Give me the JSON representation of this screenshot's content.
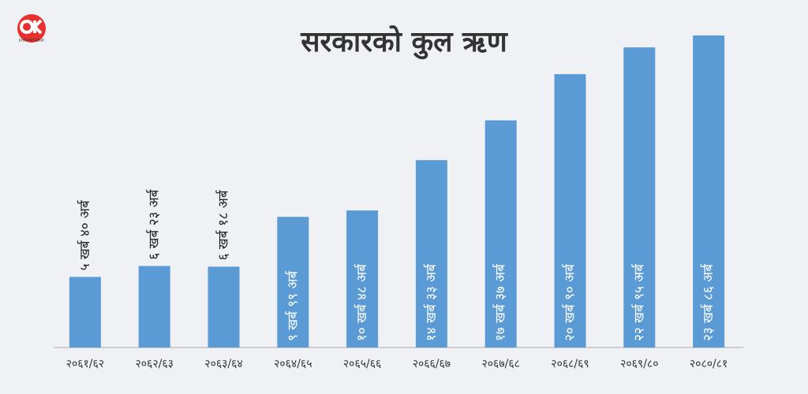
{
  "chart_data": {
    "type": "bar",
    "title": "सरकारको कुल ऋण",
    "logo_text": "onlinekhabar",
    "categories": [
      "२०६१/६२",
      "२०६२/६३",
      "२०६३/६४",
      "२०६४/६५",
      "२०६५/६६",
      "२०६६/६७",
      "२०६७/६८",
      "२०६८/६९",
      "२०६९/८०",
      "२०८०/८१"
    ],
    "values": [
      540,
      623,
      618,
      999,
      1048,
      1433,
      1737,
      2090,
      2295,
      2386
    ],
    "value_labels": [
      "५ खर्ब ४० अर्ब",
      "६ खर्ब २३ अर्ब",
      "६ खर्ब १८ अर्ब",
      "९ खर्ब ९९ अर्ब",
      "१० खर्ब ४८ अर्ब",
      "१४ खर्ब ३३ अर्ब",
      "१७ खर्ब ३७ अर्ब",
      "२० खर्ब ९० अर्ब",
      "२२ खर्ब ९५ अर्ब",
      "२३ खर्ब ८६ अर्ब"
    ],
    "color": "#5b9bd5"
  }
}
